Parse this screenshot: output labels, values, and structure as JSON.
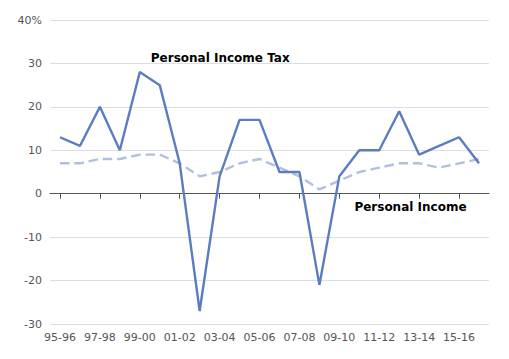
{
  "chart_data": {
    "type": "line",
    "categories": [
      "95-96",
      null,
      "97-98",
      null,
      "99-00",
      null,
      "01-02",
      null,
      "03-04",
      null,
      "05-06",
      null,
      "07-08",
      null,
      "09-10",
      null,
      "11-12",
      null,
      "13-14",
      null,
      "15-16",
      null
    ],
    "series": [
      {
        "annotation": "Personal Income",
        "color": "#b0c0dd",
        "line_style": "dashed",
        "values": [
          7,
          7,
          8,
          8,
          9,
          9,
          7,
          4,
          5,
          7,
          8,
          6,
          4,
          1,
          3,
          5,
          6,
          7,
          7,
          6,
          7,
          8
        ]
      },
      {
        "annotation": "Personal Income Tax",
        "color": "#5b7dc0",
        "line_style": "solid",
        "values": [
          13,
          11,
          20,
          10,
          28,
          25,
          7,
          -27,
          4,
          17,
          17,
          5,
          5,
          -21,
          4,
          10,
          10,
          19,
          9,
          11,
          13,
          7
        ]
      }
    ],
    "ylim": [
      -30,
      40
    ],
    "yticks": [
      -30,
      -20,
      -10,
      0,
      10,
      20,
      30,
      {
        "value": 40,
        "label": "40%"
      }
    ],
    "grid": true
  }
}
